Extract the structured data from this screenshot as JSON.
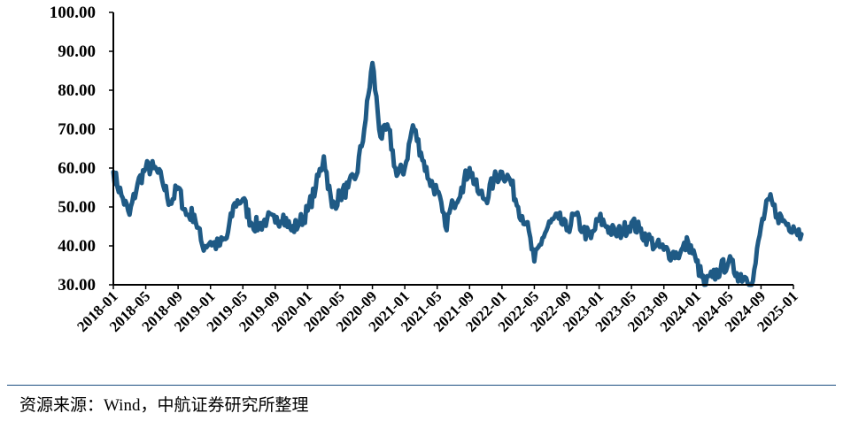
{
  "chart_data": {
    "type": "line",
    "title": "",
    "xlabel": "",
    "ylabel": "",
    "ylim": [
      30,
      100
    ],
    "y_ticks": [
      "30.00",
      "40.00",
      "50.00",
      "60.00",
      "70.00",
      "80.00",
      "90.00",
      "100.00"
    ],
    "x_ticks": [
      "2018-01",
      "2018-05",
      "2018-09",
      "2019-01",
      "2019-05",
      "2019-09",
      "2020-01",
      "2020-05",
      "2020-09",
      "2021-01",
      "2021-05",
      "2021-09",
      "2022-01",
      "2022-05",
      "2022-09",
      "2023-01",
      "2023-05",
      "2023-09",
      "2024-01",
      "2024-05",
      "2024-09",
      "2025-01"
    ],
    "grid": false,
    "legend": "none",
    "line_color": "#1f5a85",
    "series": [
      {
        "x": [
          "2018-01",
          "2018-02",
          "2018-03",
          "2018-04",
          "2018-05",
          "2018-06",
          "2018-07",
          "2018-08",
          "2018-09",
          "2018-10",
          "2018-11",
          "2018-12",
          "2019-01",
          "2019-02",
          "2019-03",
          "2019-04",
          "2019-05",
          "2019-06",
          "2019-07",
          "2019-08",
          "2019-09",
          "2019-10",
          "2019-11",
          "2019-12",
          "2020-01",
          "2020-02",
          "2020-03",
          "2020-04",
          "2020-05",
          "2020-06",
          "2020-07",
          "2020-08",
          "2020-09",
          "2020-10",
          "2020-11",
          "2020-12",
          "2021-01",
          "2021-02",
          "2021-03",
          "2021-04",
          "2021-05",
          "2021-06",
          "2021-07",
          "2021-08",
          "2021-09",
          "2021-10",
          "2021-11",
          "2021-12",
          "2022-01",
          "2022-02",
          "2022-03",
          "2022-04",
          "2022-05",
          "2022-06",
          "2022-07",
          "2022-08",
          "2022-09",
          "2022-10",
          "2022-11",
          "2022-12",
          "2023-01",
          "2023-02",
          "2023-03",
          "2023-04",
          "2023-05",
          "2023-06",
          "2023-07",
          "2023-08",
          "2023-09",
          "2023-10",
          "2023-11",
          "2023-12",
          "2024-01",
          "2024-02",
          "2024-03",
          "2024-04",
          "2024-05",
          "2024-06",
          "2024-07",
          "2024-08",
          "2024-09",
          "2024-10",
          "2024-11",
          "2024-12",
          "2025-01",
          "2025-02"
        ],
        "values": [
          59,
          53,
          48,
          56,
          60,
          60,
          57,
          51,
          55,
          48,
          48,
          40,
          41,
          40,
          42,
          51,
          52,
          46,
          45,
          47,
          46,
          48,
          44,
          46,
          49,
          55,
          63,
          50,
          53,
          55,
          58,
          70,
          87,
          68,
          70,
          58,
          60,
          71,
          64,
          57,
          54,
          45,
          51,
          55,
          60,
          54,
          52,
          57,
          59,
          57,
          50,
          46,
          36,
          42,
          46,
          47,
          44,
          48,
          44,
          42,
          47,
          45,
          43,
          44,
          46,
          44,
          42,
          40,
          39,
          38,
          38,
          41,
          36,
          30,
          32,
          34,
          36,
          33,
          32,
          31,
          45,
          52,
          48,
          46,
          45,
          43
        ]
      }
    ]
  },
  "source_note": "资源来源：Wind，中航证券研究所整理"
}
